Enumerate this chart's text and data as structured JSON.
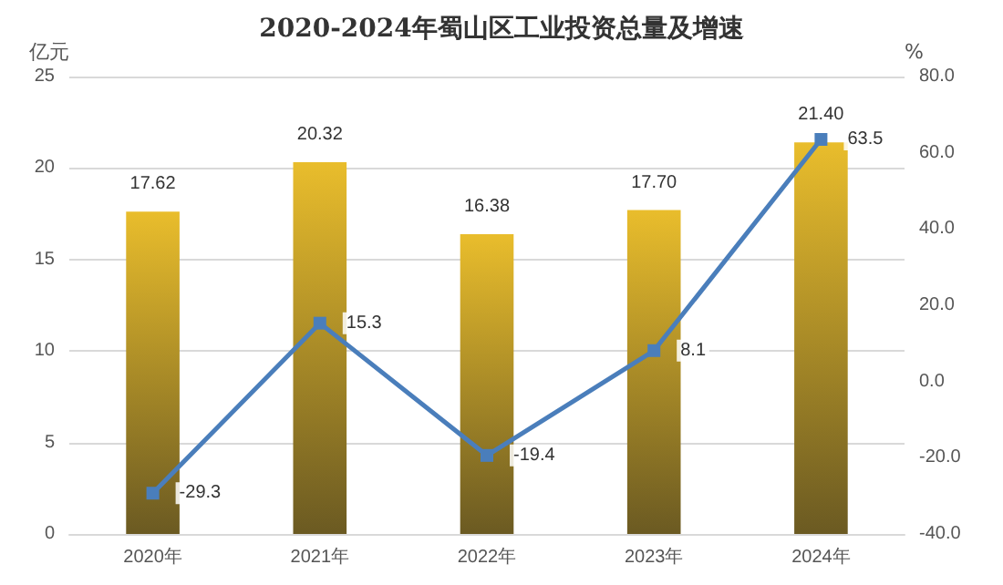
{
  "chart_data": {
    "type": "bar",
    "title": "2020-2024年蜀山区工业投资总量及增速",
    "ylabel": "亿元",
    "y2label": "%",
    "categories": [
      "2020年",
      "2021年",
      "2022年",
      "2023年",
      "2024年"
    ],
    "series": [
      {
        "color": "#e9bd2c",
        "values": [
          17.62,
          20.32,
          16.38,
          17.7,
          21.4
        ],
        "value_labels": [
          "17.62",
          "20.32",
          "16.38",
          "17.70",
          "21.40"
        ]
      },
      {
        "type": "line",
        "axis": "y2",
        "color": "#4a7ebb",
        "marker": "square",
        "values": [
          -29.3,
          15.3,
          -19.4,
          8.1,
          63.5
        ],
        "value_labels": [
          "-29.3",
          "15.3",
          "-19.4",
          "8.1",
          "63.5"
        ]
      }
    ],
    "ylim": [
      0,
      25
    ],
    "yticks": [
      0,
      5,
      10,
      15,
      20,
      25
    ],
    "y2lim": [
      -40,
      80
    ],
    "y2ticks": [
      {
        "value": -40,
        "label": "-40.0"
      },
      {
        "value": -20,
        "label": "-20.0"
      },
      {
        "value": 0,
        "label": "0.0"
      },
      {
        "value": 20,
        "label": "20.0"
      },
      {
        "value": 40,
        "label": "40.0"
      },
      {
        "value": 60,
        "label": "60.0"
      },
      {
        "value": 80,
        "label": "80.0"
      }
    ],
    "grid": "y"
  }
}
